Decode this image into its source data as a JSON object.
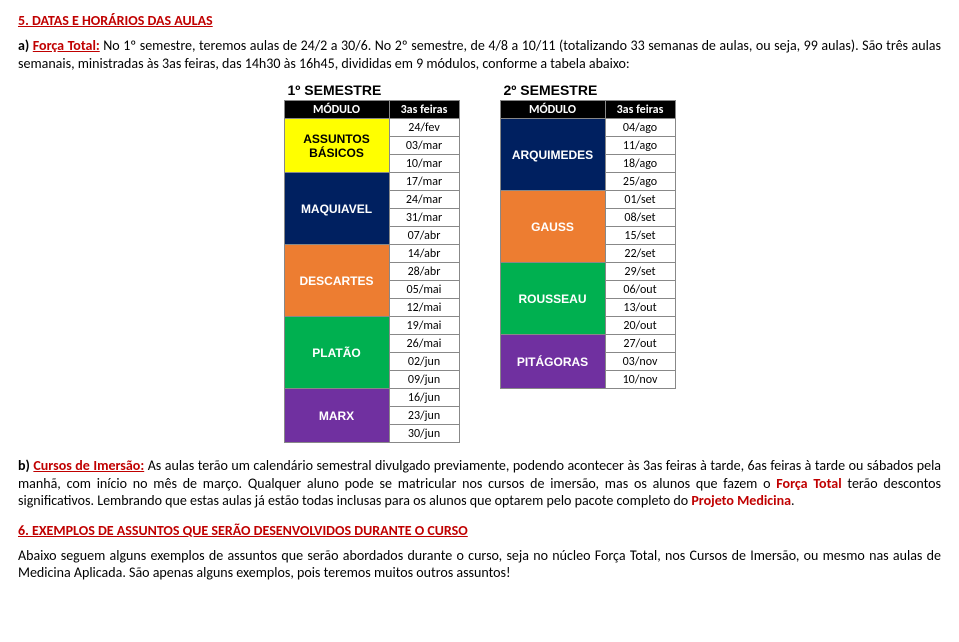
{
  "heading1": "5. DATAS E HORÁRIOS DAS AULAS",
  "paraA": {
    "prefix": "a) ",
    "label": "Força Total:",
    "rest": " No 1º semestre, teremos aulas de 24/2 a 30/6. No 2º semestre, de 4/8 a 10/11 (totalizando 33 semanas de aulas, ou seja, 99 aulas). São três aulas semanais, ministradas às 3as feiras, das 14h30 às 16h45, divididas em 9 módulos, conforme a tabela abaixo:"
  },
  "sem1": {
    "title": "1º SEMESTRE",
    "headers": [
      "MÓDULO",
      "3as feiras"
    ],
    "modules": [
      {
        "name": "ASSUNTOS BÁSICOS",
        "color": "#ffff00",
        "dates": [
          "24/fev",
          "03/mar",
          "10/mar"
        ]
      },
      {
        "name": "MAQUIAVEL",
        "color": "#002060",
        "textColor": "#ffffff",
        "dates": [
          "17/mar",
          "24/mar",
          "31/mar",
          "07/abr"
        ]
      },
      {
        "name": "DESCARTES",
        "color": "#ed7d31",
        "textColor": "#ffffff",
        "dates": [
          "14/abr",
          "28/abr",
          "05/mai",
          "12/mai"
        ]
      },
      {
        "name": "PLATÃO",
        "color": "#00b050",
        "textColor": "#ffffff",
        "dates": [
          "19/mai",
          "26/mai",
          "02/jun",
          "09/jun"
        ]
      },
      {
        "name": "MARX",
        "color": "#7030a0",
        "textColor": "#ffffff",
        "dates": [
          "16/jun",
          "23/jun",
          "30/jun"
        ]
      }
    ]
  },
  "sem2": {
    "title": "2º SEMESTRE",
    "headers": [
      "MÓDULO",
      "3as feiras"
    ],
    "modules": [
      {
        "name": "ARQUIMEDES",
        "color": "#002060",
        "textColor": "#ffffff",
        "dates": [
          "04/ago",
          "11/ago",
          "18/ago",
          "25/ago"
        ]
      },
      {
        "name": "GAUSS",
        "color": "#ed7d31",
        "textColor": "#ffffff",
        "dates": [
          "01/set",
          "08/set",
          "15/set",
          "22/set"
        ]
      },
      {
        "name": "ROUSSEAU",
        "color": "#00b050",
        "textColor": "#ffffff",
        "dates": [
          "29/set",
          "06/out",
          "13/out",
          "20/out"
        ]
      },
      {
        "name": "PITÁGORAS",
        "color": "#7030a0",
        "textColor": "#ffffff",
        "dates": [
          "27/out",
          "03/nov",
          "10/nov"
        ]
      }
    ]
  },
  "paraB": {
    "prefix": "b) ",
    "label": "Cursos de Imersão:",
    "rest1": " As aulas terão um calendário semestral divulgado previamente, podendo acontecer às 3as feiras à tarde, 6as feiras à tarde ou sábados pela manhã, com início no mês de março. Qualquer aluno pode se matricular nos cursos de imersão, mas os alunos que fazem o ",
    "forca": "Força Total",
    "rest2": " terão descontos significativos. Lembrando que estas aulas já estão todas inclusas para os alunos que optarem pelo pacote completo do ",
    "projeto": "Projeto Medicina",
    "rest3": "."
  },
  "heading2": "6. EXEMPLOS DE ASSUNTOS QUE SERÃO DESENVOLVIDOS DURANTE O CURSO",
  "paraC": "Abaixo seguem alguns exemplos de assuntos que serão abordados durante o curso, seja no núcleo Força Total, nos Cursos de Imersão, ou mesmo nas aulas de Medicina Aplicada. São apenas alguns exemplos, pois teremos muitos outros assuntos!"
}
